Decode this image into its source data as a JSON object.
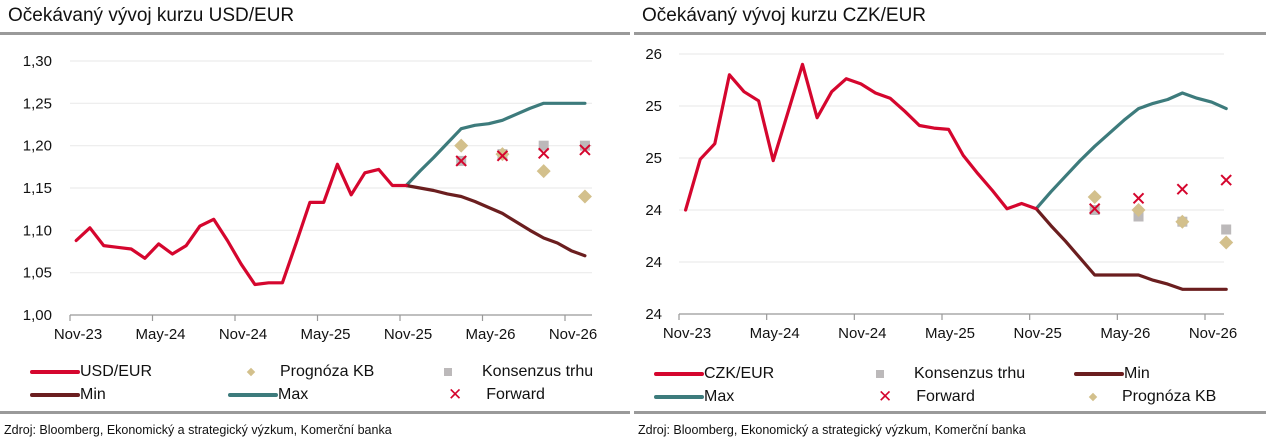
{
  "colors": {
    "spot": "#d5062e",
    "min": "#6b1e1f",
    "max": "#3d7b7c",
    "kb": "#d3c08c",
    "consensus": "#bcb9ba",
    "forward": "#d5062e",
    "grid": "#ececec",
    "axis": "#999999"
  },
  "chart_data": [
    {
      "type": "line",
      "title": "Očekávaný vývoj kurzu USD/EUR",
      "source": "Zdroj: Bloomberg, Ekonomický a strategický výzkum, Komerční banka",
      "x_tick_labels": [
        "Nov-23",
        "May-24",
        "Nov-24",
        "May-25",
        "Nov-25",
        "May-26",
        "Nov-26"
      ],
      "ylim": [
        1.0,
        1.3
      ],
      "y_ticks": [
        1.0,
        1.05,
        1.1,
        1.15,
        1.2,
        1.25,
        1.3
      ],
      "y_tick_labels": [
        "1,00",
        "1,05",
        "1,10",
        "1,15",
        "1,20",
        "1,25",
        "1,30"
      ],
      "grid": true,
      "legend": {
        "position": "bottom",
        "items": [
          {
            "key": "spot",
            "label": "USD/EUR",
            "marker": "line"
          },
          {
            "key": "kb",
            "label": "Prognóza KB",
            "marker": "diamond"
          },
          {
            "key": "consensus",
            "label": "Konsenzus trhu",
            "marker": "square"
          },
          {
            "key": "min",
            "label": "Min",
            "marker": "line"
          },
          {
            "key": "max",
            "label": "Max",
            "marker": "line"
          },
          {
            "key": "forward",
            "label": "Forward",
            "marker": "x"
          }
        ]
      },
      "series": [
        {
          "key": "spot",
          "name": "USD/EUR",
          "kind": "line",
          "x": [
            "2023-11",
            "2023-12",
            "2024-01",
            "2024-02",
            "2024-03",
            "2024-04",
            "2024-05",
            "2024-06",
            "2024-07",
            "2024-08",
            "2024-09",
            "2024-10",
            "2024-11",
            "2024-12",
            "2025-01",
            "2025-02",
            "2025-03",
            "2025-04",
            "2025-05",
            "2025-06",
            "2025-07",
            "2025-08",
            "2025-09",
            "2025-10",
            "2025-11"
          ],
          "y": [
            1.088,
            1.103,
            1.082,
            1.08,
            1.078,
            1.067,
            1.084,
            1.072,
            1.082,
            1.105,
            1.113,
            1.088,
            1.06,
            1.036,
            1.038,
            1.038,
            1.085,
            1.133,
            1.133,
            1.178,
            1.142,
            1.168,
            1.172,
            1.153,
            1.153
          ]
        },
        {
          "key": "max",
          "name": "Max",
          "kind": "line",
          "x": [
            "2025-11",
            "2025-12",
            "2026-01",
            "2026-02",
            "2026-03",
            "2026-04",
            "2026-05",
            "2026-06",
            "2026-07",
            "2026-08",
            "2026-09",
            "2026-10",
            "2026-11",
            "2026-12"
          ],
          "y": [
            1.153,
            1.17,
            1.186,
            1.203,
            1.22,
            1.224,
            1.226,
            1.23,
            1.237,
            1.244,
            1.25,
            1.25,
            1.25,
            1.25
          ]
        },
        {
          "key": "min",
          "name": "Min",
          "kind": "line",
          "x": [
            "2025-11",
            "2025-12",
            "2026-01",
            "2026-02",
            "2026-03",
            "2026-04",
            "2026-05",
            "2026-06",
            "2026-07",
            "2026-08",
            "2026-09",
            "2026-10",
            "2026-11",
            "2026-12"
          ],
          "y": [
            1.153,
            1.15,
            1.147,
            1.143,
            1.14,
            1.134,
            1.127,
            1.12,
            1.11,
            1.1,
            1.091,
            1.085,
            1.076,
            1.07
          ]
        },
        {
          "key": "consensus",
          "name": "Konsenzus trhu",
          "kind": "square",
          "x": [
            "2026-03",
            "2026-06",
            "2026-09",
            "2026-12"
          ],
          "y": [
            1.182,
            1.19,
            1.2,
            1.2
          ]
        },
        {
          "key": "kb",
          "name": "Prognóza KB",
          "kind": "diamond",
          "x": [
            "2026-03",
            "2026-06",
            "2026-09",
            "2026-12"
          ],
          "y": [
            1.2,
            1.19,
            1.17,
            1.14
          ]
        },
        {
          "key": "forward",
          "name": "Forward",
          "kind": "x",
          "x": [
            "2026-03",
            "2026-06",
            "2026-09",
            "2026-12"
          ],
          "y": [
            1.182,
            1.188,
            1.191,
            1.195
          ]
        }
      ]
    },
    {
      "type": "line",
      "title": "Očekávaný vývoj kurzu CZK/EUR",
      "source": "Zdroj: Bloomberg, Ekonomický a strategický výzkum, Komerční banka",
      "x_tick_labels": [
        "Nov-23",
        "May-24",
        "Nov-24",
        "May-25",
        "Nov-25",
        "May-26",
        "Nov-26"
      ],
      "ylim": [
        23.6,
        25.6
      ],
      "y_ticks": [
        23.6,
        24.0,
        24.4,
        24.8,
        25.2,
        25.6
      ],
      "y_tick_labels": [
        "24",
        "24",
        "24",
        "25",
        "25",
        "26"
      ],
      "grid": true,
      "legend": {
        "position": "bottom",
        "items": [
          {
            "key": "spot",
            "label": "CZK/EUR",
            "marker": "line"
          },
          {
            "key": "consensus",
            "label": "Konsenzus trhu",
            "marker": "square"
          },
          {
            "key": "min",
            "label": "Min",
            "marker": "line"
          },
          {
            "key": "max",
            "label": "Max",
            "marker": "line"
          },
          {
            "key": "forward",
            "label": "Forward",
            "marker": "x"
          },
          {
            "key": "kb",
            "label": "Prognóza KB",
            "marker": "diamond"
          }
        ]
      },
      "series": [
        {
          "key": "spot",
          "name": "CZK/EUR",
          "kind": "line",
          "x": [
            "2023-11",
            "2023-12",
            "2024-01",
            "2024-02",
            "2024-03",
            "2024-04",
            "2024-05",
            "2024-06",
            "2024-07",
            "2024-08",
            "2024-09",
            "2024-10",
            "2024-11",
            "2024-12",
            "2025-01",
            "2025-02",
            "2025-03",
            "2025-04",
            "2025-05",
            "2025-06",
            "2025-07",
            "2025-08",
            "2025-09",
            "2025-10",
            "2025-11"
          ],
          "y": [
            24.4,
            24.79,
            24.91,
            25.44,
            25.31,
            25.24,
            24.78,
            25.15,
            25.52,
            25.11,
            25.31,
            25.41,
            25.37,
            25.3,
            25.26,
            25.16,
            25.05,
            25.03,
            25.02,
            24.82,
            24.68,
            24.55,
            24.41,
            24.45,
            24.41
          ]
        },
        {
          "key": "max",
          "name": "Max",
          "kind": "line",
          "x": [
            "2025-11",
            "2025-12",
            "2026-01",
            "2026-02",
            "2026-03",
            "2026-04",
            "2026-05",
            "2026-06",
            "2026-07",
            "2026-08",
            "2026-09",
            "2026-10",
            "2026-11",
            "2026-12"
          ],
          "y": [
            24.41,
            24.54,
            24.66,
            24.78,
            24.89,
            24.99,
            25.09,
            25.18,
            25.22,
            25.25,
            25.3,
            25.26,
            25.23,
            25.18
          ]
        },
        {
          "key": "min",
          "name": "Min",
          "kind": "line",
          "x": [
            "2025-11",
            "2025-12",
            "2026-01",
            "2026-02",
            "2026-03",
            "2026-04",
            "2026-05",
            "2026-06",
            "2026-07",
            "2026-08",
            "2026-09",
            "2026-10",
            "2026-11",
            "2026-12"
          ],
          "y": [
            24.41,
            24.28,
            24.16,
            24.03,
            23.9,
            23.9,
            23.9,
            23.9,
            23.86,
            23.83,
            23.79,
            23.79,
            23.79,
            23.79
          ]
        },
        {
          "key": "consensus",
          "name": "Konsenzus trhu",
          "kind": "square",
          "x": [
            "2026-03",
            "2026-06",
            "2026-09",
            "2026-12"
          ],
          "y": [
            24.4,
            24.35,
            24.31,
            24.25
          ]
        },
        {
          "key": "kb",
          "name": "Prognóza KB",
          "kind": "diamond",
          "x": [
            "2026-03",
            "2026-06",
            "2026-09",
            "2026-12"
          ],
          "y": [
            24.5,
            24.4,
            24.31,
            24.15
          ]
        },
        {
          "key": "forward",
          "name": "Forward",
          "kind": "x",
          "x": [
            "2026-03",
            "2026-06",
            "2026-09",
            "2026-12"
          ],
          "y": [
            24.41,
            24.49,
            24.56,
            24.63
          ]
        }
      ]
    }
  ]
}
